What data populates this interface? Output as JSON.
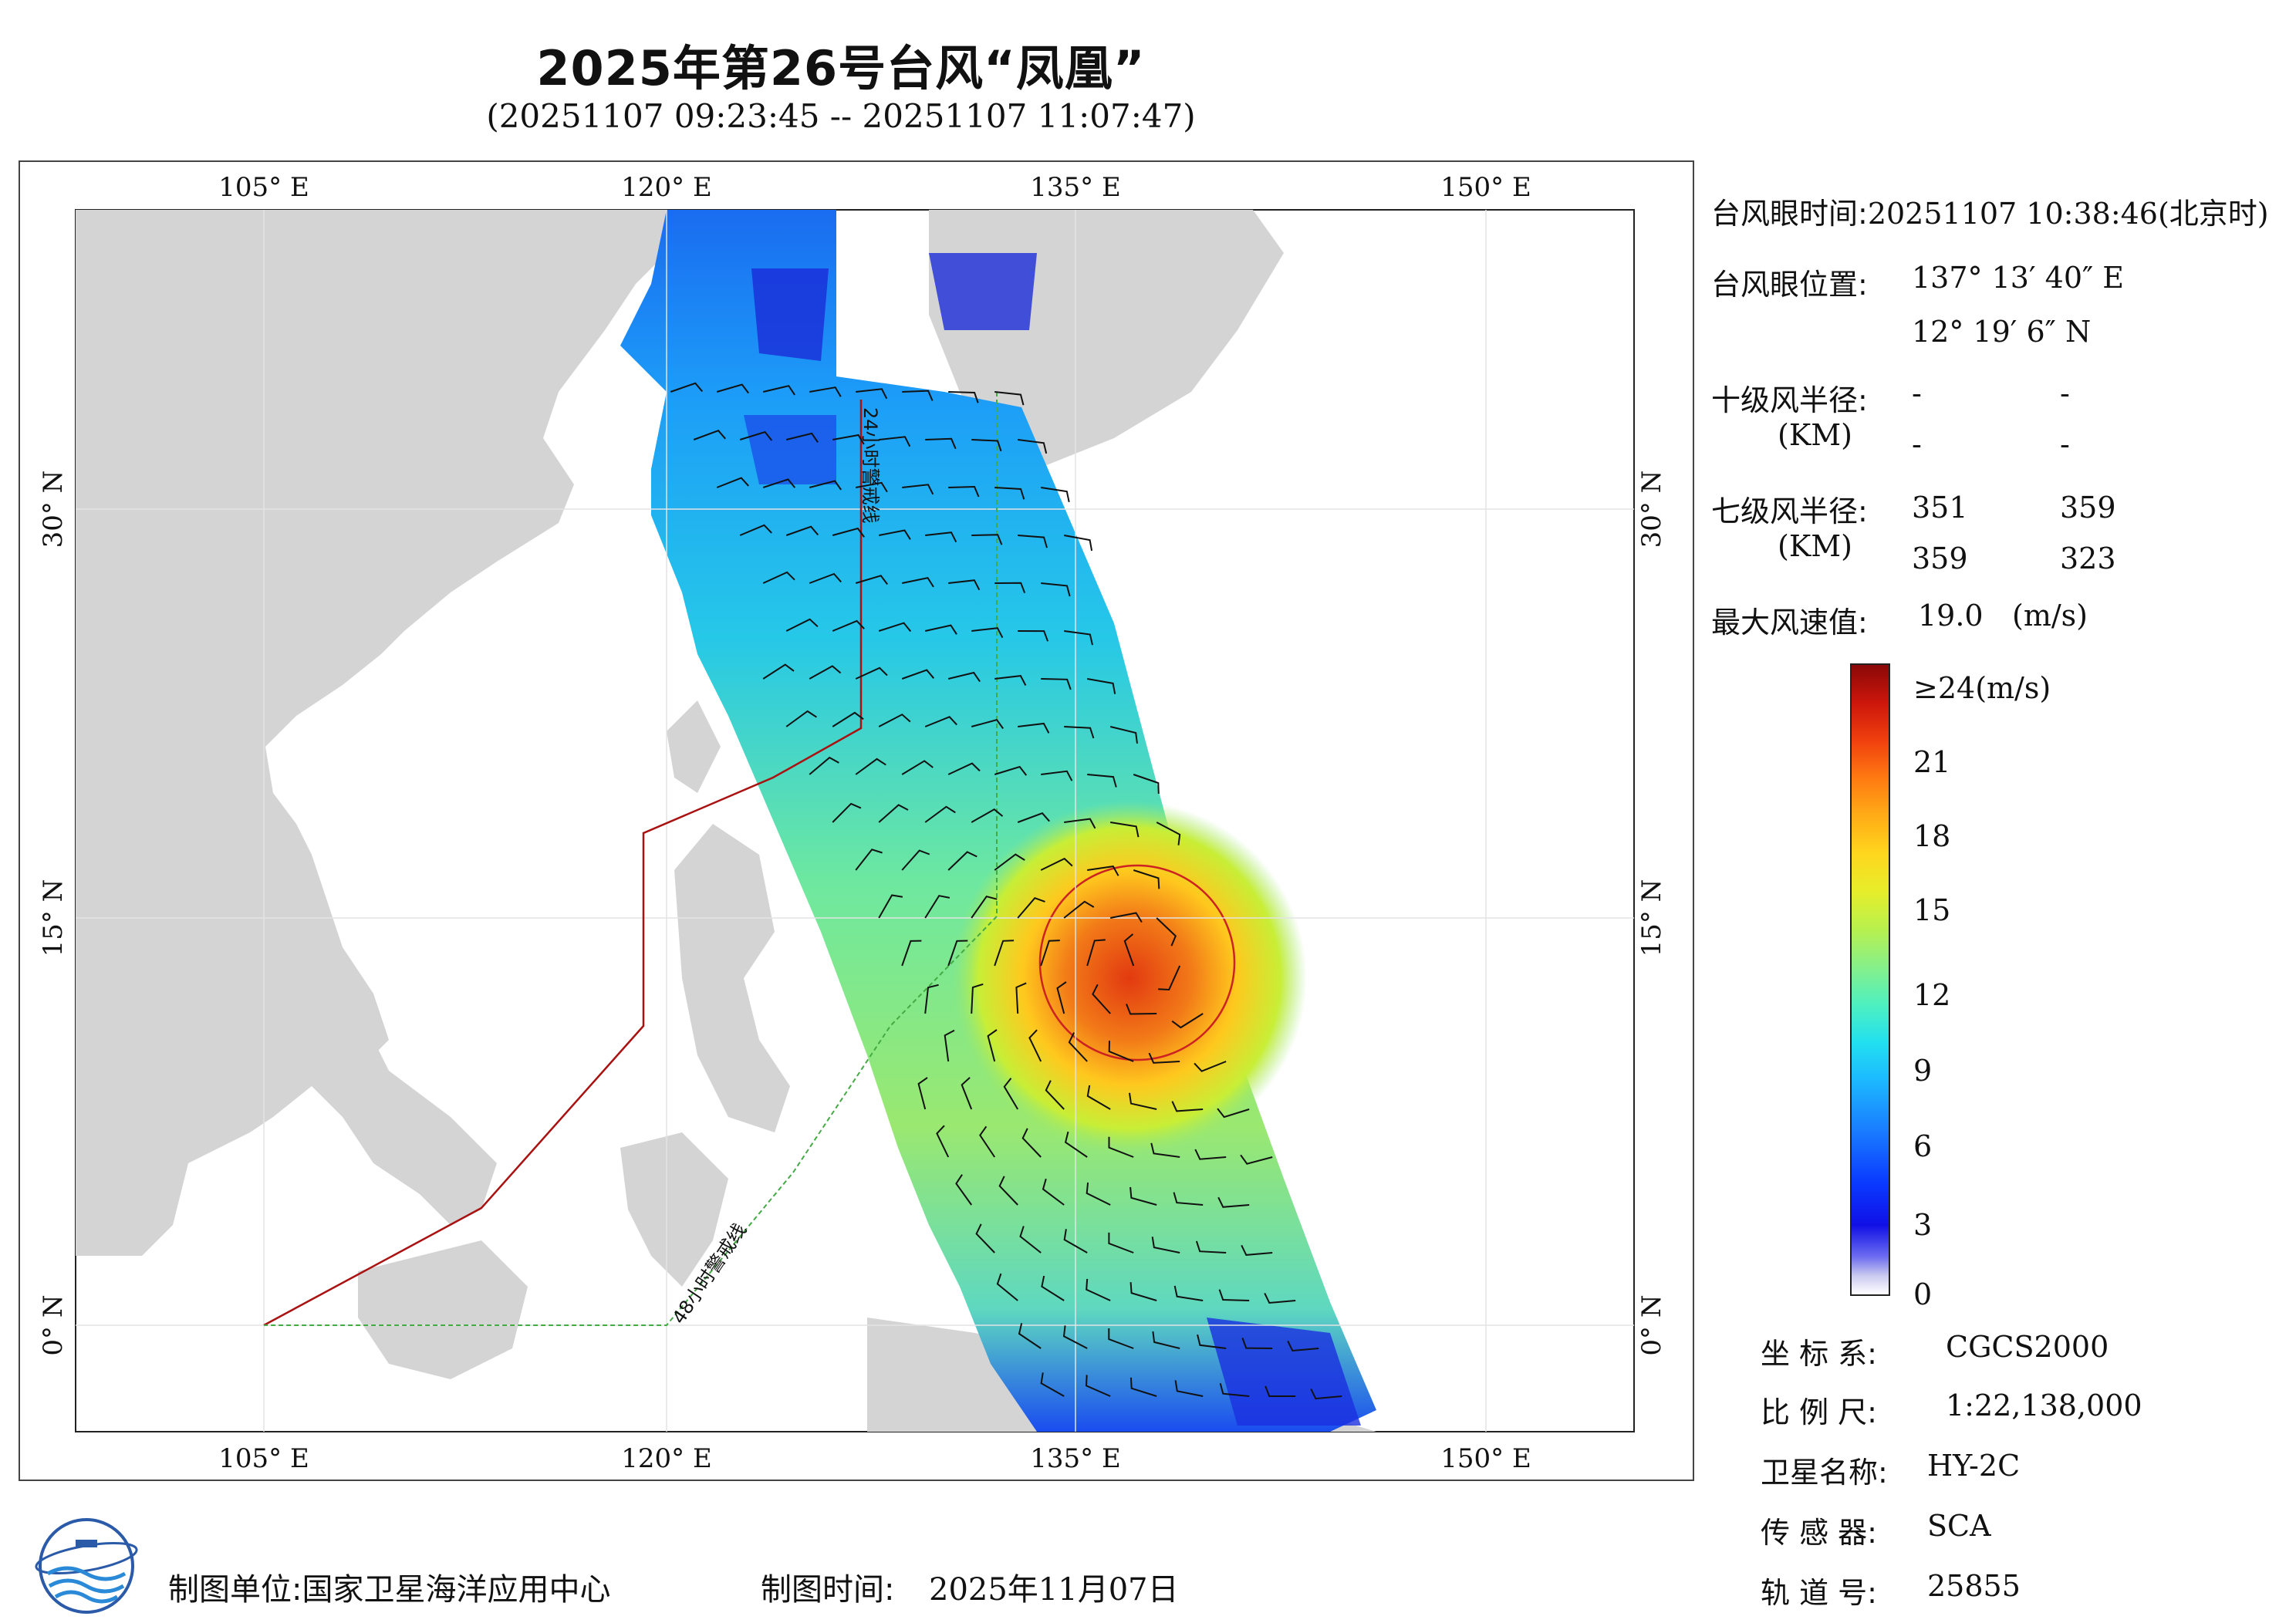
{
  "header": {
    "title": "2025年第26号台风“凤凰”",
    "subtitle": "(20251107 09:23:45 -- 20251107 11:07:47)"
  },
  "map": {
    "lon_labels": [
      "105° E",
      "120° E",
      "135° E",
      "150° E"
    ],
    "lat_labels": [
      "30° N",
      "15° N",
      "0° N"
    ],
    "warning_24h": "24小时警戒线",
    "warning_48h": "48小时警戒线",
    "colors": {
      "land": "#d4d4d4",
      "ocean": "#ffffff",
      "warning_24h": "#aa1111",
      "warning_48h": "#44aa44",
      "wind_circle": "#cc2222"
    }
  },
  "info": {
    "eye_time_key": "台风眼时间:",
    "eye_time_value": "20251107 10:38:46(北京时)",
    "eye_pos_key": "台风眼位置:",
    "eye_lon": "137° 13′ 40″ E",
    "eye_lat": "12° 19′ 6″ N",
    "r10_key": "十级风半径:",
    "r10_unit": "(KM)",
    "r10_values": [
      "-",
      "-",
      "-",
      "-"
    ],
    "r7_key": "七级风半径:",
    "r7_unit": "(KM)",
    "r7_values": [
      "351",
      "359",
      "359",
      "323"
    ],
    "max_wind_key": "最大风速值:",
    "max_wind_value": "19.0",
    "max_wind_unit": "(m/s)"
  },
  "colorbar": {
    "labels": [
      "≥24(m/s)",
      "21",
      "18",
      "15",
      "12",
      "9",
      "6",
      "3",
      "0"
    ]
  },
  "meta": {
    "crs_key": "坐 标 系:",
    "crs_value": "CGCS2000",
    "scale_key": "比 例 尺:",
    "scale_value": "1:22,138,000",
    "satellite_key": "卫星名称:",
    "satellite_value": "HY-2C",
    "sensor_key": "传 感 器:",
    "sensor_value": "SCA",
    "orbit_key": "轨 道 号:",
    "orbit_value": "25855"
  },
  "footer": {
    "unit_label": "制图单位:国家卫星海洋应用中心",
    "time_label": "制图时间:",
    "time_value": "2025年11月07日"
  }
}
